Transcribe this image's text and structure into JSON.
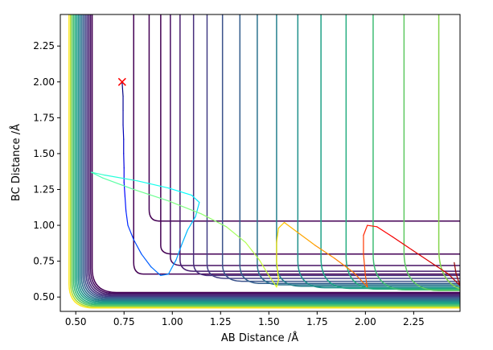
{
  "chart_data": {
    "type": "contour",
    "title": "",
    "xlabel": "AB Distance /Å",
    "ylabel": "BC Distance /Å",
    "xlim": [
      0.42,
      2.49
    ],
    "ylim": [
      0.4,
      2.47
    ],
    "xticks": [
      0.5,
      0.75,
      1.0,
      1.25,
      1.5,
      1.75,
      2.0,
      2.25
    ],
    "xtick_labels": [
      "0.50",
      "0.75",
      "1.00",
      "1.25",
      "1.50",
      "1.75",
      "2.00",
      "2.25"
    ],
    "yticks": [
      0.5,
      0.75,
      1.0,
      1.25,
      1.5,
      1.75,
      2.0,
      2.25
    ],
    "ytick_labels": [
      "0.50",
      "0.75",
      "1.00",
      "1.25",
      "1.50",
      "1.75",
      "2.00",
      "2.25"
    ],
    "grid": false,
    "colormap": [
      "#440154",
      "#472d7b",
      "#3b528b",
      "#2c728e",
      "#21918c",
      "#28ae80",
      "#5ec962",
      "#addc30",
      "#fde725"
    ],
    "contour_levels": [
      {
        "corner": [
          0.88,
          1.03
        ],
        "r_low": 0.05,
        "r_high": 0.08,
        "color": "#440154"
      },
      {
        "corner": [
          0.8,
          0.66
        ],
        "r_low": 0.05,
        "r_high": 0.08,
        "color": "#440154"
      },
      {
        "corner": [
          0.94,
          0.8
        ],
        "r_low": 0.06,
        "r_high": 0.06,
        "color": "#440154"
      },
      {
        "corner": [
          0.99,
          0.72
        ],
        "r_low": 0.06,
        "r_high": 0.06,
        "color": "#471063"
      },
      {
        "corner": [
          1.04,
          0.68
        ],
        "r_low": 0.07,
        "r_high": 0.08,
        "color": "#481e6f"
      },
      {
        "corner": [
          1.11,
          0.65
        ],
        "r_low": 0.08,
        "r_high": 0.09,
        "color": "#472d7b"
      },
      {
        "corner": [
          1.18,
          0.63
        ],
        "r_low": 0.09,
        "r_high": 0.1,
        "color": "#433e85"
      },
      {
        "corner": [
          1.26,
          0.61
        ],
        "r_low": 0.1,
        "r_high": 0.12,
        "color": "#3b528b"
      },
      {
        "corner": [
          1.35,
          0.595
        ],
        "r_low": 0.11,
        "r_high": 0.13,
        "color": "#345f8d"
      },
      {
        "corner": [
          1.44,
          0.585
        ],
        "r_low": 0.12,
        "r_high": 0.15,
        "color": "#2c728e"
      },
      {
        "corner": [
          1.54,
          0.575
        ],
        "r_low": 0.13,
        "r_high": 0.17,
        "color": "#26818e"
      },
      {
        "corner": [
          1.65,
          0.565
        ],
        "r_low": 0.14,
        "r_high": 0.19,
        "color": "#21918c"
      },
      {
        "corner": [
          1.77,
          0.56
        ],
        "r_low": 0.15,
        "r_high": 0.21,
        "color": "#1fa287"
      },
      {
        "corner": [
          1.9,
          0.555
        ],
        "r_low": 0.16,
        "r_high": 0.23,
        "color": "#28ae80"
      },
      {
        "corner": [
          2.04,
          0.55
        ],
        "r_low": 0.17,
        "r_high": 0.25,
        "color": "#3fbc73"
      },
      {
        "corner": [
          2.2,
          0.545
        ],
        "r_low": 0.18,
        "r_high": 0.27,
        "color": "#5ec962"
      },
      {
        "corner": [
          2.38,
          0.54
        ],
        "r_low": 0.19,
        "r_high": 0.3,
        "color": "#84d44b"
      },
      {
        "corner": [
          2.58,
          0.535
        ],
        "r_low": 0.2,
        "r_high": 0.33,
        "color": "#addc30"
      },
      {
        "corner": [
          2.82,
          0.53
        ],
        "r_low": 0.21,
        "r_high": 0.36,
        "color": "#d8e219"
      },
      {
        "corner": [
          3.1,
          0.525
        ],
        "r_low": 0.22,
        "r_high": 0.4,
        "color": "#fde725"
      }
    ],
    "wall_contours": {
      "offsets": [
        0.0,
        0.008,
        0.016,
        0.024,
        0.032,
        0.04,
        0.048,
        0.056,
        0.064,
        0.072,
        0.08,
        0.088,
        0.096,
        0.104,
        0.112,
        0.12
      ],
      "x_base": 0.585,
      "y_base": 0.532,
      "colors": [
        "#440154",
        "#471063",
        "#481e6f",
        "#472d7b",
        "#433e85",
        "#3b528b",
        "#345f8d",
        "#2c728e",
        "#26818e",
        "#21918c",
        "#1fa287",
        "#28ae80",
        "#3fbc73",
        "#5ec962",
        "#addc30",
        "#fde725"
      ]
    },
    "trajectory": {
      "name": "",
      "colormap": "jet",
      "points": [
        [
          0.74,
          2.0
        ],
        [
          0.745,
          1.9
        ],
        [
          0.745,
          1.8
        ],
        [
          0.745,
          1.7
        ],
        [
          0.748,
          1.6
        ],
        [
          0.748,
          1.5
        ],
        [
          0.75,
          1.4
        ],
        [
          0.75,
          1.3
        ],
        [
          0.755,
          1.2
        ],
        [
          0.76,
          1.1
        ],
        [
          0.77,
          1.0
        ],
        [
          0.8,
          0.9
        ],
        [
          0.84,
          0.8
        ],
        [
          0.89,
          0.71
        ],
        [
          0.94,
          0.65
        ],
        [
          0.98,
          0.66
        ],
        [
          1.02,
          0.76
        ],
        [
          1.05,
          0.87
        ],
        [
          1.08,
          0.97
        ],
        [
          1.12,
          1.06
        ],
        [
          1.14,
          1.16
        ],
        [
          1.1,
          1.21
        ],
        [
          0.98,
          1.26
        ],
        [
          0.82,
          1.31
        ],
        [
          0.65,
          1.35
        ],
        [
          0.58,
          1.37
        ],
        [
          0.64,
          1.33
        ],
        [
          0.8,
          1.25
        ],
        [
          0.98,
          1.17
        ],
        [
          1.15,
          1.08
        ],
        [
          1.28,
          0.99
        ],
        [
          1.38,
          0.88
        ],
        [
          1.45,
          0.76
        ],
        [
          1.5,
          0.65
        ],
        [
          1.54,
          0.57
        ],
        [
          1.55,
          0.62
        ],
        [
          1.54,
          0.75
        ],
        [
          1.54,
          0.88
        ],
        [
          1.55,
          0.98
        ],
        [
          1.58,
          1.02
        ],
        [
          1.65,
          0.95
        ],
        [
          1.74,
          0.86
        ],
        [
          1.84,
          0.77
        ],
        [
          1.94,
          0.67
        ],
        [
          2.01,
          0.57
        ],
        [
          2.0,
          0.65
        ],
        [
          1.99,
          0.8
        ],
        [
          1.99,
          0.93
        ],
        [
          2.01,
          1.0
        ],
        [
          2.06,
          0.99
        ],
        [
          2.14,
          0.92
        ],
        [
          2.24,
          0.83
        ],
        [
          2.34,
          0.74
        ],
        [
          2.43,
          0.66
        ],
        [
          2.49,
          0.58
        ],
        [
          2.47,
          0.66
        ],
        [
          2.46,
          0.74
        ]
      ]
    },
    "marker": {
      "x": 0.74,
      "y": 2.0,
      "symbol": "x",
      "color": "#ff0000"
    }
  }
}
